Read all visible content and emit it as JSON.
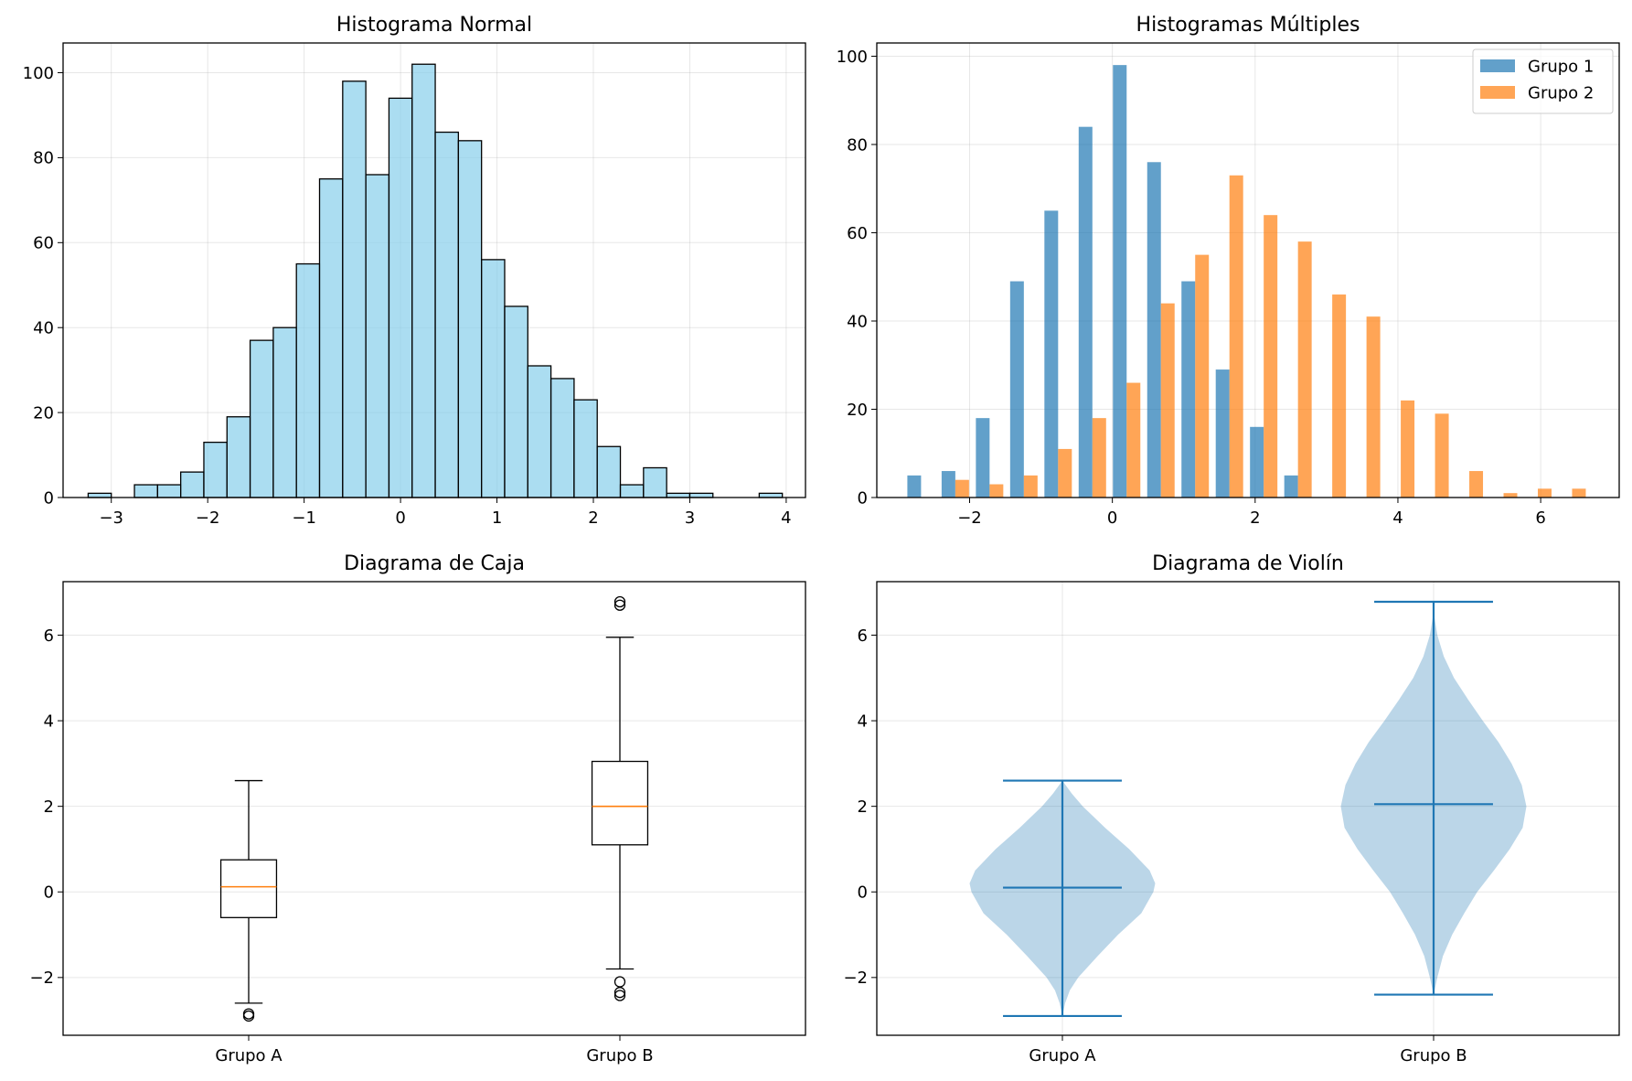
{
  "chart_data": [
    {
      "type": "bar",
      "subtype": "histogram",
      "title": "Histograma Normal",
      "xlabel": "",
      "ylabel": "",
      "xlim": [
        -3.5,
        4.2
      ],
      "ylim": [
        0,
        107
      ],
      "grid": true,
      "color": "#87CEEB",
      "edge_color": "#000000",
      "bin_edges": [
        -3.24,
        -3.0,
        -2.76,
        -2.52,
        -2.28,
        -2.04,
        -1.8,
        -1.56,
        -1.32,
        -1.08,
        -0.84,
        -0.6,
        -0.36,
        -0.12,
        0.12,
        0.36,
        0.6,
        0.84,
        1.08,
        1.32,
        1.56,
        1.8,
        2.04,
        2.28,
        2.52,
        2.76,
        3.0,
        3.24,
        3.48,
        3.72,
        3.96
      ],
      "values": [
        1,
        0,
        3,
        3,
        6,
        13,
        19,
        37,
        40,
        55,
        75,
        98,
        76,
        94,
        102,
        86,
        84,
        56,
        45,
        31,
        28,
        23,
        12,
        3,
        7,
        1,
        1,
        0,
        0,
        1
      ],
      "xticks": [
        -3,
        -2,
        -1,
        0,
        1,
        2,
        3,
        4
      ],
      "xtick_labels": [
        "−3",
        "−2",
        "−1",
        "0",
        "1",
        "2",
        "3",
        "4"
      ],
      "yticks": [
        0,
        20,
        40,
        60,
        80,
        100
      ],
      "ytick_labels": [
        "0",
        "20",
        "40",
        "60",
        "80",
        "100"
      ]
    },
    {
      "type": "bar",
      "subtype": "grouped-histogram",
      "title": "Histogramas Múltiples",
      "xlabel": "",
      "ylabel": "",
      "xlim": [
        -3.3,
        7.1
      ],
      "ylim": [
        0,
        103
      ],
      "grid": true,
      "legend_position": "top-right",
      "bin_edges": [
        -2.92,
        -2.44,
        -1.96,
        -1.48,
        -1.0,
        -0.52,
        -0.04,
        0.44,
        0.92,
        1.4,
        1.88,
        2.36,
        2.84,
        3.32,
        3.8,
        4.28,
        4.76,
        5.24,
        5.72,
        6.2,
        6.68
      ],
      "series": [
        {
          "name": "Grupo 1",
          "color": "#1f77b4",
          "values": [
            5,
            6,
            18,
            49,
            65,
            84,
            98,
            76,
            49,
            29,
            16,
            5,
            0,
            0,
            0,
            0,
            0,
            0,
            0,
            0
          ]
        },
        {
          "name": "Grupo 2",
          "color": "#ff7f0e",
          "values": [
            0,
            4,
            3,
            5,
            11,
            18,
            26,
            44,
            55,
            73,
            64,
            58,
            46,
            41,
            22,
            19,
            6,
            1,
            2,
            2
          ]
        }
      ],
      "xticks": [
        -2,
        0,
        2,
        4,
        6
      ],
      "xtick_labels": [
        "−2",
        "0",
        "2",
        "4",
        "6"
      ],
      "yticks": [
        0,
        20,
        40,
        60,
        80,
        100
      ],
      "ytick_labels": [
        "0",
        "20",
        "40",
        "60",
        "80",
        "100"
      ]
    },
    {
      "type": "boxplot",
      "title": "Diagrama de Caja",
      "xlabel": "",
      "ylabel": "",
      "ylim": [
        -3.35,
        7.25
      ],
      "grid": "y",
      "median_color": "#ff7f0e",
      "categories": [
        "Grupo A",
        "Grupo B"
      ],
      "boxes": [
        {
          "whisker_low": -2.6,
          "q1": -0.6,
          "median": 0.12,
          "q3": 0.75,
          "whisker_high": 2.6,
          "outliers": [
            -2.85,
            -2.9
          ]
        },
        {
          "whisker_low": -1.8,
          "q1": 1.1,
          "median": 2.0,
          "q3": 3.05,
          "whisker_high": 5.95,
          "outliers": [
            6.7,
            6.78,
            -2.1,
            -2.35,
            -2.42
          ]
        }
      ],
      "yticks": [
        -2,
        0,
        2,
        4,
        6
      ],
      "ytick_labels": [
        "−2",
        "0",
        "2",
        "4",
        "6"
      ]
    },
    {
      "type": "violin",
      "title": "Diagrama de Violín",
      "xlabel": "",
      "ylabel": "",
      "ylim": [
        -3.35,
        7.25
      ],
      "grid": true,
      "color": "#1f77b4",
      "categories": [
        "Grupo A",
        "Grupo B"
      ],
      "violins": [
        {
          "min": -2.9,
          "median": 0.1,
          "max": 2.6,
          "profile_y": [
            -2.9,
            -2.6,
            -2.3,
            -2.0,
            -1.5,
            -1.0,
            -0.5,
            0.0,
            0.2,
            0.5,
            1.0,
            1.5,
            2.0,
            2.3,
            2.6
          ],
          "profile_w": [
            0.0,
            0.03,
            0.08,
            0.17,
            0.38,
            0.6,
            0.85,
            0.98,
            1.0,
            0.94,
            0.72,
            0.46,
            0.22,
            0.1,
            0.0
          ]
        },
        {
          "min": -2.4,
          "median": 2.05,
          "max": 6.78,
          "profile_y": [
            -2.4,
            -2.0,
            -1.5,
            -1.0,
            -0.5,
            0.0,
            0.5,
            1.0,
            1.5,
            2.0,
            2.5,
            3.0,
            3.5,
            4.0,
            4.5,
            5.0,
            5.5,
            6.0,
            6.4,
            6.78
          ],
          "profile_w": [
            0.0,
            0.04,
            0.1,
            0.2,
            0.33,
            0.47,
            0.65,
            0.82,
            0.96,
            1.0,
            0.95,
            0.84,
            0.7,
            0.53,
            0.37,
            0.22,
            0.11,
            0.04,
            0.01,
            0.0
          ]
        }
      ],
      "yticks": [
        -2,
        0,
        2,
        4,
        6
      ],
      "ytick_labels": [
        "−2",
        "0",
        "2",
        "4",
        "6"
      ]
    }
  ]
}
